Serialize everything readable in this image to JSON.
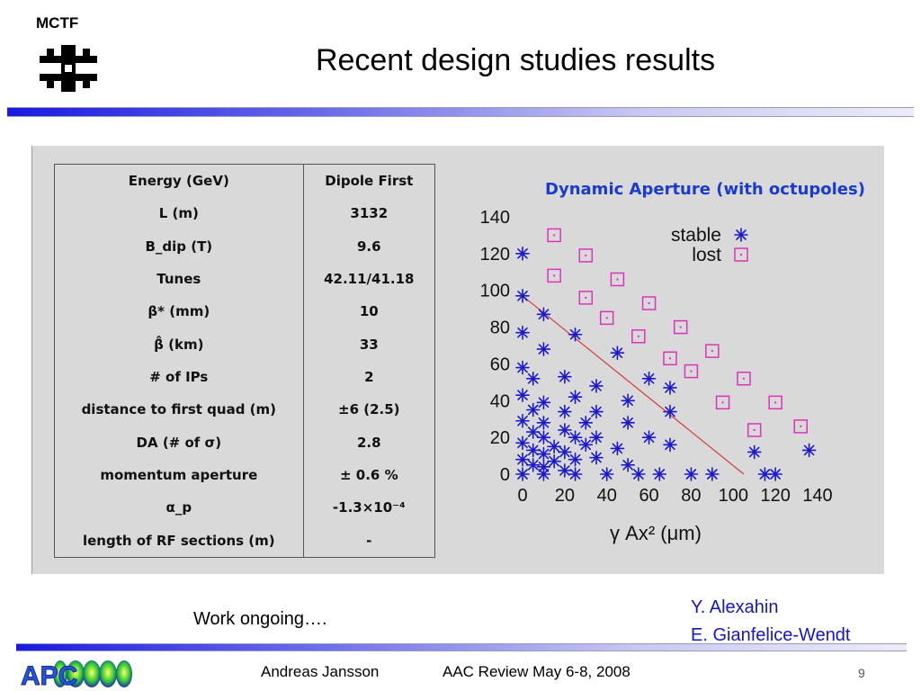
{
  "header": {
    "logo_text": "MCTF",
    "title": "Recent design studies results"
  },
  "table": {
    "rows": [
      {
        "param": "Energy (GeV)",
        "value": "Dipole First"
      },
      {
        "param": "L (m)",
        "value": "3132"
      },
      {
        "param": "B_dip (T)",
        "value": "9.6"
      },
      {
        "param": "Tunes",
        "value": "42.11/41.18"
      },
      {
        "param": "β* (mm)",
        "value": "10"
      },
      {
        "param": "β̂ (km)",
        "value": "33"
      },
      {
        "param": "# of IPs",
        "value": "2"
      },
      {
        "param": "distance to first quad (m)",
        "value": "±6 (2.5)"
      },
      {
        "param": "DA (# of σ)",
        "value": "2.8"
      },
      {
        "param": "momentum aperture",
        "value": "± 0.6 %"
      },
      {
        "param": "α_p",
        "value": "-1.3×10⁻⁴"
      },
      {
        "param": "length of RF sections (m)",
        "value": "-"
      }
    ]
  },
  "chart_data": {
    "type": "scatter",
    "title": "Dynamic Aperture (with octupoles)",
    "xlabel": "γ Ax² (μm)",
    "xlim": [
      0,
      140
    ],
    "ylim": [
      0,
      140
    ],
    "xticks": [
      0,
      20,
      40,
      60,
      80,
      100,
      120,
      140
    ],
    "yticks": [
      0,
      20,
      40,
      60,
      80,
      100,
      120,
      140
    ],
    "legend_position": "top-right",
    "series": [
      {
        "name": "stable",
        "marker": "asterisk",
        "color": "#1a1acc",
        "points": [
          [
            0,
            120
          ],
          [
            0,
            97
          ],
          [
            0,
            77
          ],
          [
            0,
            58
          ],
          [
            0,
            43
          ],
          [
            0,
            29
          ],
          [
            0,
            17
          ],
          [
            0,
            8
          ],
          [
            0,
            0
          ],
          [
            5,
            52
          ],
          [
            5,
            35
          ],
          [
            5,
            23
          ],
          [
            5,
            13
          ],
          [
            5,
            5
          ],
          [
            10,
            87
          ],
          [
            10,
            68
          ],
          [
            10,
            39
          ],
          [
            10,
            28
          ],
          [
            10,
            20
          ],
          [
            10,
            11
          ],
          [
            10,
            4
          ],
          [
            10,
            0
          ],
          [
            15,
            15
          ],
          [
            15,
            7
          ],
          [
            20,
            53
          ],
          [
            20,
            34
          ],
          [
            20,
            24
          ],
          [
            20,
            12
          ],
          [
            20,
            2
          ],
          [
            25,
            76
          ],
          [
            25,
            42
          ],
          [
            25,
            20
          ],
          [
            25,
            8
          ],
          [
            25,
            0
          ],
          [
            30,
            28
          ],
          [
            30,
            16
          ],
          [
            35,
            48
          ],
          [
            35,
            34
          ],
          [
            35,
            20
          ],
          [
            35,
            9
          ],
          [
            40,
            0
          ],
          [
            45,
            66
          ],
          [
            45,
            14
          ],
          [
            50,
            40
          ],
          [
            50,
            28
          ],
          [
            50,
            5
          ],
          [
            55,
            0
          ],
          [
            60,
            52
          ],
          [
            60,
            20
          ],
          [
            65,
            0
          ],
          [
            70,
            47
          ],
          [
            70,
            34
          ],
          [
            70,
            16
          ],
          [
            80,
            0
          ],
          [
            90,
            0
          ],
          [
            110,
            12
          ],
          [
            115,
            0
          ],
          [
            120,
            0
          ],
          [
            136,
            13
          ]
        ]
      },
      {
        "name": "lost",
        "marker": "square",
        "color": "#dd33bb",
        "points": [
          [
            15,
            130
          ],
          [
            15,
            108
          ],
          [
            30,
            119
          ],
          [
            30,
            96
          ],
          [
            40,
            85
          ],
          [
            45,
            106
          ],
          [
            55,
            75
          ],
          [
            60,
            93
          ],
          [
            70,
            63
          ],
          [
            75,
            80
          ],
          [
            80,
            56
          ],
          [
            90,
            67
          ],
          [
            95,
            39
          ],
          [
            105,
            52
          ],
          [
            110,
            24
          ],
          [
            120,
            39
          ],
          [
            132,
            26
          ]
        ]
      }
    ],
    "reference_line": {
      "from": [
        0,
        97
      ],
      "to": [
        105,
        0
      ],
      "color": "#d43c3c"
    }
  },
  "notes": {
    "work": "Work ongoing….",
    "author1": "Y. Alexahin",
    "author2": "E. Gianfelice-Wendt"
  },
  "footer": {
    "logo_text": "APC",
    "author": "Andreas Jansson",
    "event": "AAC Review May 6-8, 2008",
    "page": "9"
  }
}
